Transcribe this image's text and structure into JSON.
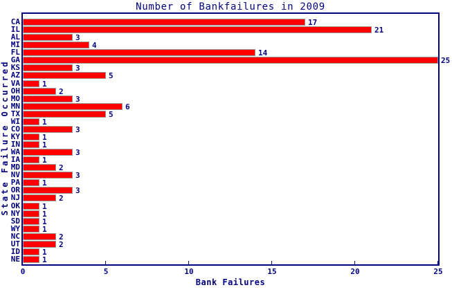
{
  "colors": {
    "background": "#ffffff",
    "bar_fill": "#ff0000",
    "bar_border": "#999999",
    "axis": "#000080",
    "text": "#000080"
  },
  "chart_data": {
    "type": "bar",
    "orientation": "horizontal",
    "title": "Number of Bankfailures in 2009",
    "xlabel": "Bank Failures",
    "ylabel": "State Failure Occurred",
    "categories": [
      "CA",
      "IL",
      "AL",
      "MI",
      "FL",
      "GA",
      "KS",
      "AZ",
      "VA",
      "OH",
      "MO",
      "MN",
      "TX",
      "WI",
      "CO",
      "KY",
      "IN",
      "WA",
      "IA",
      "MD",
      "NV",
      "PA",
      "OR",
      "NJ",
      "OK",
      "NY",
      "SD",
      "WY",
      "NC",
      "UT",
      "ID",
      "NE"
    ],
    "values": [
      17,
      21,
      3,
      4,
      14,
      25,
      3,
      5,
      1,
      2,
      3,
      6,
      5,
      1,
      3,
      1,
      1,
      3,
      1,
      2,
      3,
      1,
      3,
      2,
      1,
      1,
      1,
      1,
      2,
      2,
      1,
      1
    ],
    "xlim": [
      0,
      25
    ],
    "xticks": [
      0,
      5,
      10,
      15,
      20,
      25
    ],
    "grid": false,
    "legend": "none",
    "value_labels": true
  }
}
